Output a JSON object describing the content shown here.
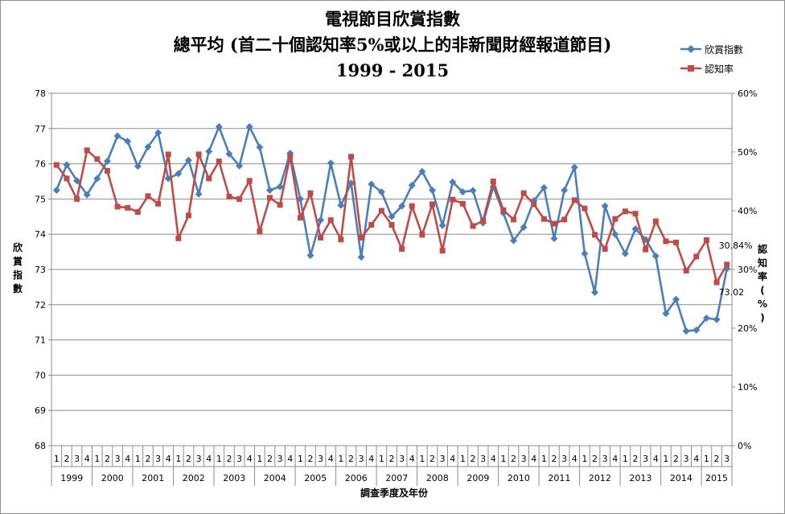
{
  "title": {
    "line1": "電視節目欣賞指數",
    "line2": "總平均 (首二十個認知率5%或以上的非新聞財經報道節目)",
    "line3": "1999 - 2015"
  },
  "legend": [
    {
      "label": "欣賞指數",
      "color": "#4a7ebb",
      "marker": "diamond"
    },
    {
      "label": "認知率",
      "color": "#be4b48",
      "marker": "square"
    }
  ],
  "y_left_label": "欣賞指數",
  "y_right_label": "認知率(%)",
  "x_label": "調查季度及年份",
  "annotations": {
    "last_awareness": "30.84%",
    "last_index": "73.02"
  },
  "chart_data": {
    "type": "line",
    "years": [
      "1999",
      "2000",
      "2001",
      "2002",
      "2003",
      "2004",
      "2005",
      "2006",
      "2007",
      "2008",
      "2009",
      "2010",
      "2011",
      "2012",
      "2013",
      "2014",
      "2015"
    ],
    "quarters": [
      "1",
      "2",
      "3",
      "4",
      "1",
      "2",
      "3",
      "4",
      "1",
      "2",
      "3",
      "4",
      "1",
      "2",
      "3",
      "4",
      "1",
      "2",
      "3",
      "4",
      "1",
      "2",
      "3",
      "4",
      "1",
      "2",
      "3",
      "4",
      "1",
      "2",
      "3",
      "4",
      "1",
      "2",
      "3",
      "4",
      "1",
      "2",
      "3",
      "4",
      "1",
      "2",
      "3",
      "4",
      "1",
      "2",
      "3",
      "4",
      "1",
      "2",
      "3",
      "4",
      "1",
      "2",
      "3",
      "4",
      "1",
      "2",
      "3",
      "4",
      "1",
      "2",
      "3",
      "4",
      "1",
      "2",
      "3"
    ],
    "y_left": {
      "min": 68,
      "max": 78,
      "step": 1,
      "ticks": [
        "68",
        "69",
        "70",
        "71",
        "72",
        "73",
        "74",
        "75",
        "76",
        "77",
        "78"
      ]
    },
    "y_right": {
      "min": 0,
      "max": 60,
      "step": 10,
      "ticks": [
        "0%",
        "10%",
        "20%",
        "30%",
        "40%",
        "50%",
        "60%"
      ]
    },
    "grid": "horizontal",
    "legend_position": "top-right",
    "series": [
      {
        "name": "欣賞指數",
        "axis": "left",
        "color": "#4a7ebb",
        "marker": "diamond",
        "values": [
          75.25,
          75.97,
          75.52,
          75.12,
          75.58,
          76.07,
          76.79,
          76.64,
          75.93,
          76.48,
          76.88,
          75.58,
          75.72,
          76.1,
          75.14,
          76.35,
          77.05,
          76.28,
          75.94,
          77.05,
          76.47,
          75.25,
          75.35,
          76.3,
          75.0,
          73.4,
          74.4,
          76.02,
          74.82,
          75.45,
          73.35,
          75.42,
          75.2,
          74.5,
          74.8,
          75.39,
          75.78,
          75.25,
          74.25,
          75.48,
          75.2,
          75.24,
          74.32,
          75.35,
          74.6,
          73.82,
          74.2,
          74.95,
          75.32,
          73.88,
          75.25,
          75.9,
          73.45,
          72.35,
          74.8,
          74.0,
          73.45,
          74.15,
          73.85,
          73.38,
          71.75,
          72.15,
          71.25,
          71.28,
          71.62,
          71.58,
          73.02
        ]
      },
      {
        "name": "認知率",
        "axis": "right",
        "color": "#be4b48",
        "marker": "square",
        "values": [
          47.8,
          45.5,
          42.0,
          50.3,
          48.8,
          46.8,
          40.7,
          40.5,
          39.8,
          42.5,
          41.2,
          49.6,
          35.3,
          39.2,
          49.6,
          45.5,
          48.4,
          42.4,
          42.0,
          45.1,
          36.5,
          42.2,
          41.0,
          49.3,
          38.8,
          43.0,
          35.4,
          38.4,
          35.1,
          49.2,
          35.4,
          37.6,
          40.0,
          37.6,
          33.5,
          40.8,
          35.9,
          41.1,
          33.2,
          41.9,
          41.2,
          37.4,
          38.3,
          45.0,
          40.1,
          38.5,
          43.0,
          41.1,
          38.6,
          37.8,
          38.5,
          41.8,
          40.4,
          35.9,
          33.5,
          38.6,
          39.9,
          39.5,
          33.4,
          38.2,
          34.8,
          34.6,
          29.8,
          32.2,
          35.0,
          27.8,
          30.84
        ]
      }
    ]
  }
}
